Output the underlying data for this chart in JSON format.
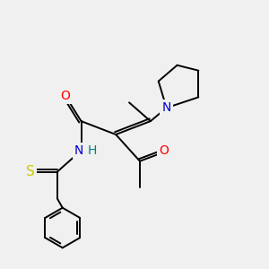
{
  "bg_color": "#f0f0f0",
  "bond_color": "#000000",
  "atom_colors": {
    "N": "#0000cc",
    "O": "#ff0000",
    "S": "#cccc00",
    "H": "#008080",
    "C": "#000000"
  },
  "font_size": 10,
  "line_width": 1.4,
  "figsize": [
    3.0,
    3.0
  ],
  "dpi": 100
}
